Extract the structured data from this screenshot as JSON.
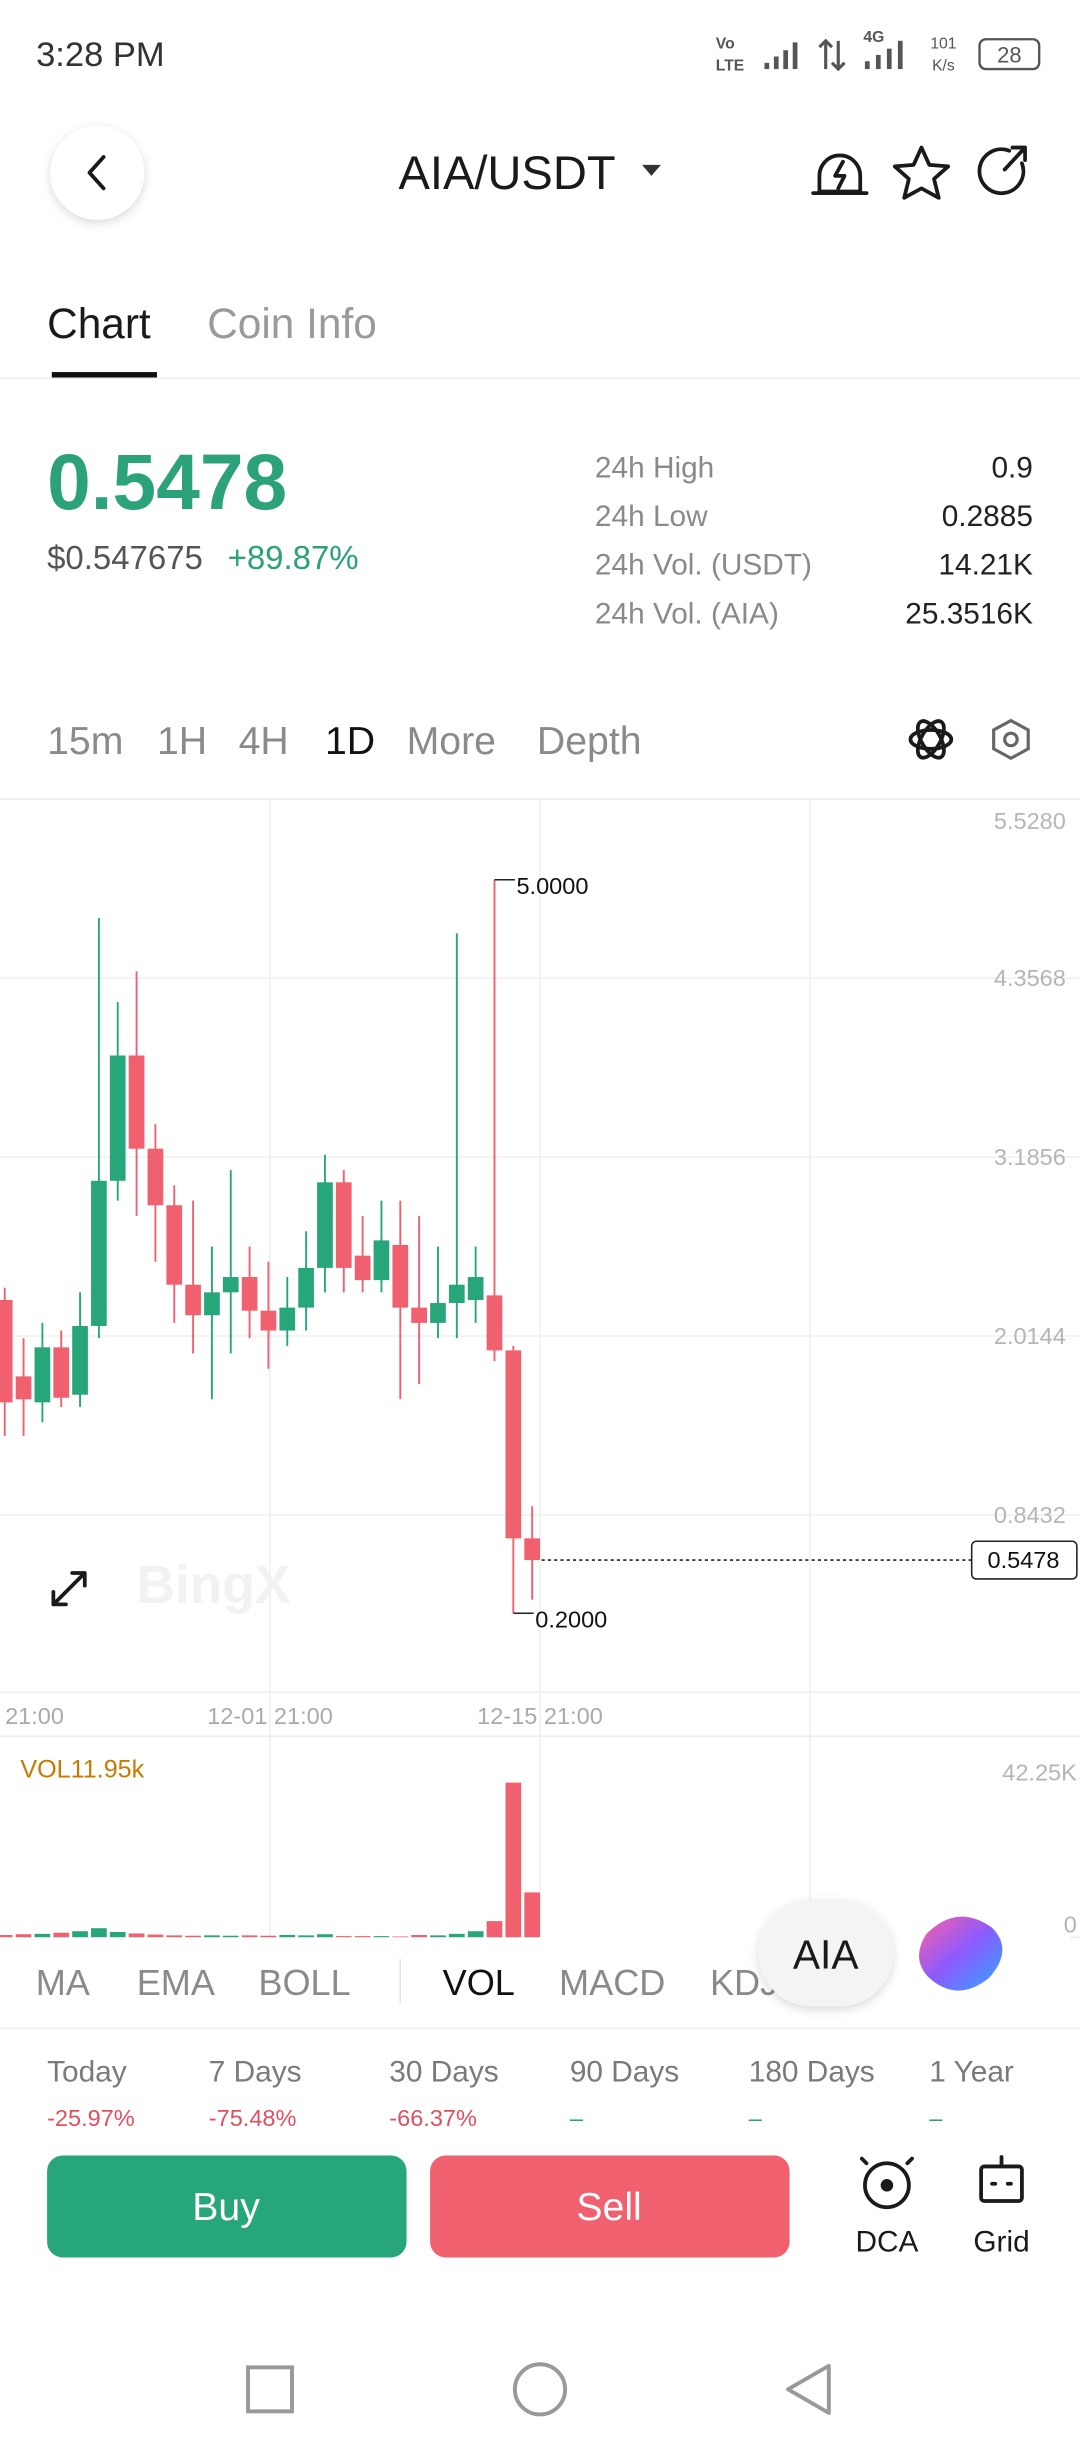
{
  "status_bar": {
    "time": "3:28 PM",
    "network": "4G",
    "speed": "101",
    "speed_unit": "K/s",
    "battery": "28"
  },
  "header": {
    "pair": "AIA/USDT"
  },
  "tabs": [
    "Chart",
    "Coin Info"
  ],
  "price": {
    "last": "0.5478",
    "usd": "$0.547675",
    "change": "+89.87%"
  },
  "stats": [
    {
      "label": "24h High",
      "value": "0.9"
    },
    {
      "label": "24h Low",
      "value": "0.2885"
    },
    {
      "label": "24h Vol. (USDT)",
      "value": "14.21K"
    },
    {
      "label": "24h Vol. (AIA)",
      "value": "25.3516K"
    }
  ],
  "intervals": [
    "15m",
    "1H",
    "4H",
    "1D",
    "More",
    "Depth"
  ],
  "chart": {
    "type": "candlestick",
    "up_color": "#27a67a",
    "down_color": "#f0606e",
    "ylim": [
      -0.3176,
      5.528
    ],
    "yticks": [
      {
        "value": 5.528,
        "label": "5.5280"
      },
      {
        "value": 4.3568,
        "label": "4.3568"
      },
      {
        "value": 3.1856,
        "label": "3.1856"
      },
      {
        "value": 2.0144,
        "label": "2.0144"
      },
      {
        "value": 0.8432,
        "label": "0.8432"
      }
    ],
    "x_labels": [
      "21:00",
      "12-01 21:00",
      "12-15 21:00"
    ],
    "candles": [
      {
        "open": 2.25,
        "high": 2.33,
        "low": 1.36,
        "close": 1.58
      },
      {
        "open": 1.75,
        "high": 2.0,
        "low": 1.36,
        "close": 1.6
      },
      {
        "open": 1.58,
        "high": 2.1,
        "low": 1.45,
        "close": 1.94
      },
      {
        "open": 1.94,
        "high": 2.05,
        "low": 1.55,
        "close": 1.61
      },
      {
        "open": 1.63,
        "high": 2.3,
        "low": 1.55,
        "close": 2.08
      },
      {
        "open": 2.08,
        "high": 4.75,
        "low": 2.0,
        "close": 3.03
      },
      {
        "open": 3.03,
        "high": 4.2,
        "low": 2.9,
        "close": 3.85
      },
      {
        "open": 3.85,
        "high": 4.4,
        "low": 2.8,
        "close": 3.24
      },
      {
        "open": 3.24,
        "high": 3.4,
        "low": 2.5,
        "close": 2.87
      },
      {
        "open": 2.87,
        "high": 3.0,
        "low": 2.1,
        "close": 2.35
      },
      {
        "open": 2.35,
        "high": 2.9,
        "low": 1.9,
        "close": 2.15
      },
      {
        "open": 2.15,
        "high": 2.6,
        "low": 1.6,
        "close": 2.3
      },
      {
        "open": 2.3,
        "high": 3.1,
        "low": 1.9,
        "close": 2.4
      },
      {
        "open": 2.4,
        "high": 2.6,
        "low": 2.0,
        "close": 2.18
      },
      {
        "open": 2.18,
        "high": 2.5,
        "low": 1.8,
        "close": 2.05
      },
      {
        "open": 2.05,
        "high": 2.4,
        "low": 1.95,
        "close": 2.2
      },
      {
        "open": 2.2,
        "high": 2.7,
        "low": 2.05,
        "close": 2.46
      },
      {
        "open": 2.46,
        "high": 3.2,
        "low": 2.3,
        "close": 3.02
      },
      {
        "open": 3.02,
        "high": 3.1,
        "low": 2.3,
        "close": 2.46
      },
      {
        "open": 2.54,
        "high": 2.8,
        "low": 2.3,
        "close": 2.38
      },
      {
        "open": 2.38,
        "high": 2.9,
        "low": 2.3,
        "close": 2.64
      },
      {
        "open": 2.61,
        "high": 2.9,
        "low": 1.6,
        "close": 2.2
      },
      {
        "open": 2.2,
        "high": 2.8,
        "low": 1.7,
        "close": 2.1
      },
      {
        "open": 2.1,
        "high": 2.6,
        "low": 2.0,
        "close": 2.23
      },
      {
        "open": 2.23,
        "high": 4.65,
        "low": 2.0,
        "close": 2.35
      },
      {
        "open": 2.25,
        "high": 2.6,
        "low": 2.1,
        "close": 2.4
      },
      {
        "open": 2.28,
        "high": 5.0,
        "low": 1.85,
        "close": 1.92
      },
      {
        "open": 1.92,
        "high": 1.95,
        "low": 0.2,
        "close": 0.69
      },
      {
        "open": 0.69,
        "high": 0.9,
        "low": 0.2885,
        "close": 0.5478
      }
    ],
    "high_label": "5.0000",
    "low_label": "0.2000",
    "last_label": "0.5478",
    "watermark": "BingX",
    "volume": {
      "label": "VOL11.95k",
      "ylim": [
        0,
        42.25
      ],
      "yticks": [
        {
          "value": 42.25,
          "label": "42.25K"
        },
        0
      ],
      "values": [
        0.6,
        0.8,
        0.9,
        1.2,
        1.6,
        2.4,
        1.4,
        1.0,
        0.7,
        0.5,
        0.4,
        0.5,
        0.4,
        0.5,
        0.4,
        0.6,
        0.5,
        0.8,
        0.3,
        0.3,
        0.3,
        0.2,
        0.6,
        0.5,
        0.9,
        1.6,
        4.3,
        41.2,
        11.95
      ]
    }
  },
  "indicators": [
    "MA",
    "EMA",
    "BOLL",
    "VOL",
    "MACD",
    "KDJ"
  ],
  "floating_button": "AIA",
  "performance": [
    {
      "period": "Today",
      "change": "-25.97%"
    },
    {
      "period": "7 Days",
      "change": "-75.48%"
    },
    {
      "period": "30 Days",
      "change": "-66.37%"
    },
    {
      "period": "90 Days",
      "change": "–"
    },
    {
      "period": "180 Days",
      "change": "–"
    },
    {
      "period": "1 Year",
      "change": "–"
    }
  ],
  "actions": {
    "buy": "Buy",
    "sell": "Sell",
    "dca": "DCA",
    "grid": "Grid"
  }
}
